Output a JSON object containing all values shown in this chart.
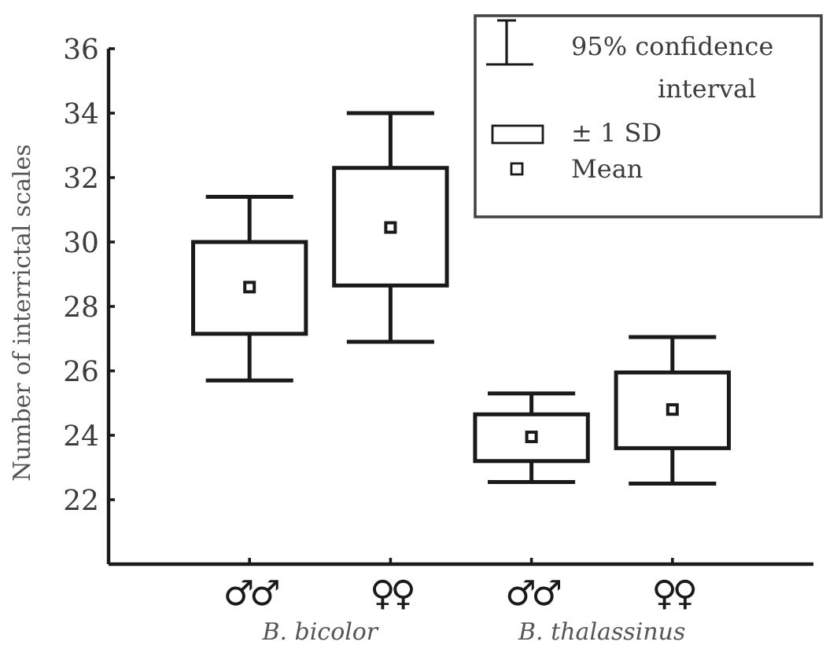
{
  "chart_data": {
    "type": "box",
    "categories": [
      "♂♂",
      "♀♀",
      "♂♂",
      "♀♀"
    ],
    "ylabel": "Number of interrictal scales",
    "annotations": [
      "95% confidence interval",
      "± 1 SD",
      "Mean",
      "B. bicolor",
      "B. thalassinus"
    ],
    "boxes": [
      {
        "low": 25.7,
        "q1": 27.15,
        "median": null,
        "q3": 30.0,
        "high": 31.4,
        "mean": 28.6
      },
      {
        "low": 26.9,
        "q1": 28.65,
        "median": null,
        "q3": 32.3,
        "high": 34.0,
        "mean": 30.45
      },
      {
        "low": 22.55,
        "q1": 23.2,
        "median": null,
        "q3": 24.65,
        "high": 25.3,
        "mean": 23.95
      },
      {
        "low": 22.5,
        "q1": 23.6,
        "median": null,
        "q3": 25.95,
        "high": 27.05,
        "mean": 24.8
      }
    ],
    "color": "#1a1a1a",
    "marker": "square",
    "ylim": [
      20,
      36
    ],
    "yticks": [
      22,
      24,
      26,
      28,
      30,
      32,
      34,
      36
    ]
  }
}
